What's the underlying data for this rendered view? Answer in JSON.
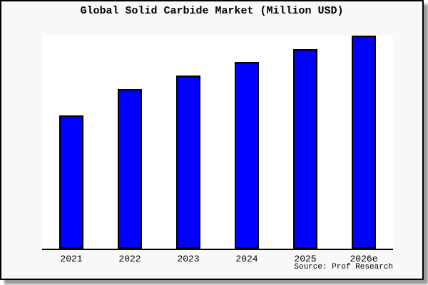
{
  "title": "Global Solid Carbide Market (Million USD)",
  "source_credit": "Source: Prof Research",
  "colors": {
    "bar_fill": "#0000ff",
    "bar_border": "#000000",
    "figure_bg": "#f8f8f8",
    "plot_bg": "#ffffff",
    "axis": "#000000",
    "text": "#000000",
    "frame_border": "#000000",
    "shadow": "#9a9a9a"
  },
  "chart_data": {
    "type": "bar",
    "title": "Global Solid Carbide Market (Million USD)",
    "categories": [
      "2021",
      "2022",
      "2023",
      "2024",
      "2025",
      "2026e"
    ],
    "values": [
      62.5,
      74.9,
      81.3,
      87.6,
      93.6,
      100
    ],
    "xlabel": "",
    "ylabel": "",
    "ylim": [
      0,
      100
    ],
    "y_axis_tick_labels_visible": false,
    "gridlines": false,
    "legend": "none",
    "source": "Source: Prof Research",
    "values_note": "relative scale estimated from bar heights; chart shows no y-axis tick labels (tallest bar = 100)"
  }
}
